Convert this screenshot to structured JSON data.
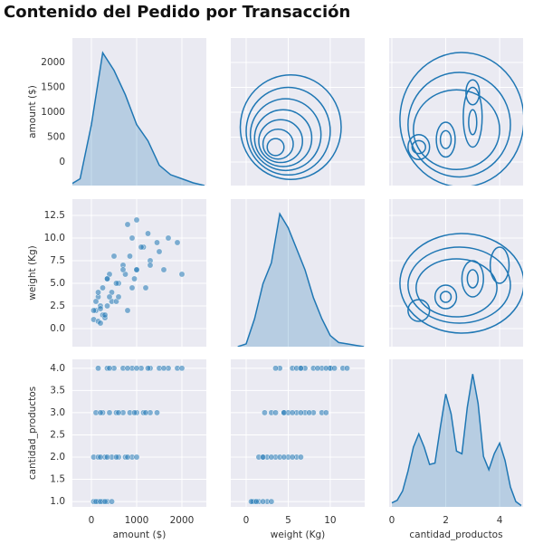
{
  "title": "Contenido del Pedido por Transacción",
  "chart_data": {
    "type": "pairplot",
    "color": "#1f77b4",
    "grid": true,
    "variables": [
      {
        "label": "amount ($)",
        "xlim": [
          -420,
          2540
        ],
        "ylim": [
          -473,
          2491
        ],
        "xticks": [
          0,
          1000,
          2000
        ],
        "yticks": [
          0,
          500,
          1000,
          1500,
          2000
        ],
        "values": [
          50,
          150,
          250,
          350,
          450,
          100,
          200,
          300,
          50,
          150,
          300,
          450,
          600,
          750,
          900,
          1000,
          200,
          350,
          550,
          800,
          100,
          250,
          400,
          550,
          700,
          850,
          1000,
          1150,
          1300,
          1450,
          600,
          950,
          200,
          1200,
          150,
          350,
          500,
          700,
          900,
          1100,
          1300,
          1500,
          1700,
          1900,
          2000,
          800,
          1000,
          400,
          1250,
          1600
        ],
        "kde": {
          "x": [
            -500,
            -250,
            0,
            250,
            500,
            750,
            1000,
            1250,
            1500,
            1750,
            2000,
            2250,
            2500
          ],
          "density": [
            0,
            0.05,
            0.45,
            0.98,
            0.85,
            0.67,
            0.45,
            0.33,
            0.15,
            0.08,
            0.05,
            0.02,
            0
          ]
        }
      },
      {
        "label": "weight (Kg)",
        "xlim": [
          -1.83,
          14.1
        ],
        "ylim": [
          -2.0,
          14.3
        ],
        "xticks": [
          0,
          5,
          10
        ],
        "yticks": [
          {
            "value": 0,
            "label": "0.0"
          },
          2.5,
          {
            "value": 5,
            "label": "5.0"
          },
          7.5,
          {
            "value": 10,
            "label": "10.0"
          },
          12.5
        ],
        "values": [
          1.0,
          0.8,
          1.5,
          2.5,
          3.0,
          2.0,
          0.6,
          1.2,
          2.0,
          3.5,
          1.5,
          4.0,
          5.0,
          6.0,
          4.5,
          6.5,
          2.5,
          5.5,
          3.0,
          2.0,
          3.0,
          4.5,
          6.0,
          5.0,
          7.0,
          8.0,
          6.5,
          9.0,
          7.5,
          9.5,
          3.5,
          5.5,
          2.2,
          4.5,
          4.0,
          5.5,
          8.0,
          6.5,
          10.0,
          9.0,
          7.0,
          8.5,
          10.0,
          9.5,
          6.0,
          11.5,
          12.0,
          3.5,
          10.5,
          6.5
        ],
        "kde": {
          "x": [
            -1,
            0,
            1,
            2,
            3,
            4,
            5,
            6,
            7,
            8,
            9,
            10,
            11,
            12,
            13,
            14
          ],
          "density": [
            0,
            0.02,
            0.2,
            0.45,
            0.6,
            0.95,
            0.85,
            0.7,
            0.55,
            0.35,
            0.2,
            0.08,
            0.03,
            0.02,
            0.01,
            0
          ]
        }
      },
      {
        "label": "cantidad_productos",
        "xlim": [
          -0.1,
          4.87
        ],
        "ylim": [
          0.88,
          4.2
        ],
        "xticks": [
          0,
          2,
          4
        ],
        "yticks": [
          {
            "value": 1,
            "label": "1.0"
          },
          1.5,
          {
            "value": 2,
            "label": "2.0"
          },
          2.5,
          {
            "value": 3,
            "label": "3.0"
          },
          3.5,
          {
            "value": 4,
            "label": "4.0"
          }
        ],
        "values": [
          1,
          1,
          1,
          1,
          1,
          1,
          1,
          1,
          2,
          2,
          2,
          2,
          2,
          2,
          2,
          2,
          2,
          2,
          2,
          2,
          3,
          3,
          3,
          3,
          3,
          3,
          3,
          3,
          3,
          3,
          3,
          3,
          3,
          3,
          4,
          4,
          4,
          4,
          4,
          4,
          4,
          4,
          4,
          4,
          4,
          4,
          4,
          4,
          4,
          4
        ],
        "kde": {
          "x": [
            0,
            0.2,
            0.4,
            0.6,
            0.8,
            1.0,
            1.2,
            1.4,
            1.6,
            1.8,
            2.0,
            2.2,
            2.4,
            2.6,
            2.8,
            3.0,
            3.2,
            3.4,
            3.6,
            3.8,
            4.0,
            4.2,
            4.4,
            4.6,
            4.8
          ],
          "density": [
            0.03,
            0.05,
            0.12,
            0.27,
            0.45,
            0.55,
            0.45,
            0.32,
            0.33,
            0.6,
            0.85,
            0.7,
            0.42,
            0.4,
            0.75,
            1.0,
            0.78,
            0.38,
            0.28,
            0.4,
            0.48,
            0.35,
            0.15,
            0.04,
            0.01
          ]
        }
      }
    ],
    "contours": [
      [
        {
          "cx": 5.3,
          "cy": 700,
          "rx": 6.0,
          "ry": 1050
        },
        {
          "cx": 5.0,
          "cy": 620,
          "rx": 5.0,
          "ry": 880
        },
        {
          "cx": 4.7,
          "cy": 550,
          "rx": 4.2,
          "ry": 720
        },
        {
          "cx": 4.4,
          "cy": 480,
          "rx": 3.4,
          "ry": 570
        },
        {
          "cx": 4.1,
          "cy": 420,
          "rx": 2.6,
          "ry": 430
        },
        {
          "cx": 3.8,
          "cy": 360,
          "rx": 1.8,
          "ry": 300
        },
        {
          "cx": 3.5,
          "cy": 300,
          "rx": 1.0,
          "ry": 170
        }
      ],
      [
        {
          "cx": 2.6,
          "cy": 850,
          "rx": 2.3,
          "ry": 1350
        },
        {
          "cx": 2.5,
          "cy": 750,
          "rx": 1.9,
          "ry": 1050
        },
        {
          "cx": 2.4,
          "cy": 650,
          "rx": 1.6,
          "ry": 800
        },
        {
          "cx": 1,
          "cy": 300,
          "rx": 0.4,
          "ry": 250
        },
        {
          "cx": 1,
          "cy": 300,
          "rx": 0.25,
          "ry": 130
        },
        {
          "cx": 2,
          "cy": 450,
          "rx": 0.35,
          "ry": 350
        },
        {
          "cx": 2,
          "cy": 450,
          "rx": 0.2,
          "ry": 180
        },
        {
          "cx": 3,
          "cy": 900,
          "rx": 0.35,
          "ry": 600
        },
        {
          "cx": 3,
          "cy": 1400,
          "rx": 0.25,
          "ry": 250
        },
        {
          "cx": 3,
          "cy": 800,
          "rx": 0.15,
          "ry": 250
        }
      ],
      [
        {
          "cx": 2.6,
          "cy": 5,
          "rx": 2.3,
          "ry": 5.5
        },
        {
          "cx": 2.5,
          "cy": 4.8,
          "rx": 1.9,
          "ry": 4.2
        },
        {
          "cx": 2.4,
          "cy": 4.5,
          "rx": 1.5,
          "ry": 3.2
        },
        {
          "cx": 1,
          "cy": 2,
          "rx": 0.4,
          "ry": 1.2
        },
        {
          "cx": 2,
          "cy": 3.5,
          "rx": 0.4,
          "ry": 1.3
        },
        {
          "cx": 2,
          "cy": 3.5,
          "rx": 0.2,
          "ry": 0.6
        },
        {
          "cx": 3,
          "cy": 5.5,
          "rx": 0.4,
          "ry": 2
        },
        {
          "cx": 3,
          "cy": 5.5,
          "rx": 0.2,
          "ry": 1
        },
        {
          "cx": 4,
          "cy": 7,
          "rx": 0.35,
          "ry": 2
        }
      ]
    ]
  }
}
